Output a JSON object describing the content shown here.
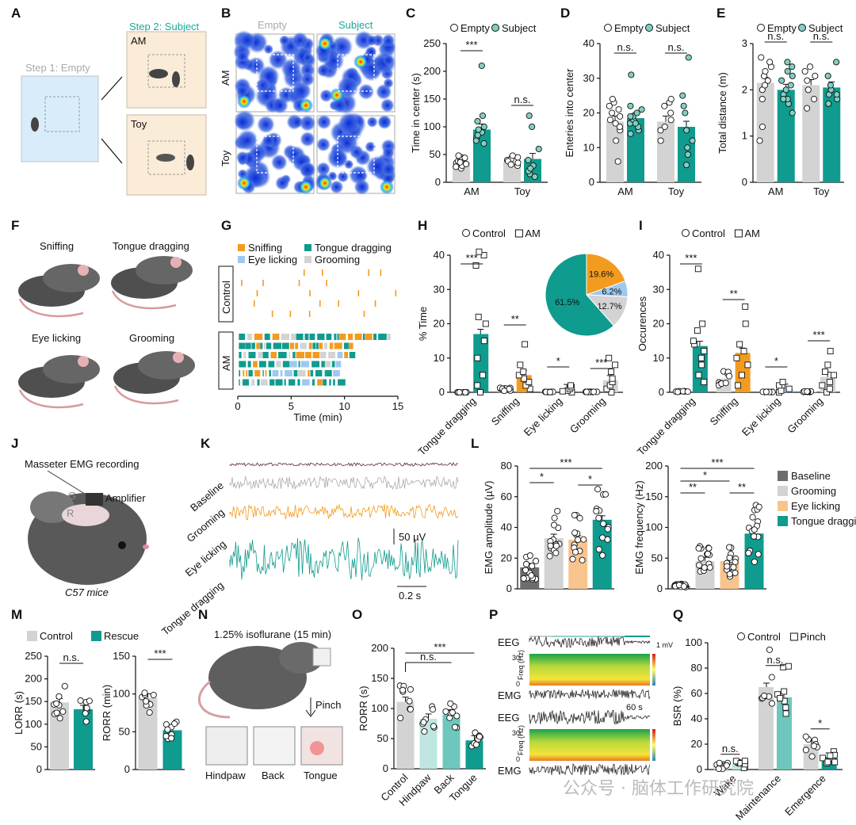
{
  "panel_labels": [
    "A",
    "B",
    "C",
    "D",
    "E",
    "F",
    "G",
    "H",
    "I",
    "J",
    "K",
    "L",
    "M",
    "N",
    "O",
    "P",
    "Q"
  ],
  "colors": {
    "teal": "#0f9b8e",
    "gray": "#d3d3d3",
    "orange": "#f39b1f",
    "light_blue": "#9dc8ef",
    "light_orange": "#f8c48d",
    "baseline_gray": "#6d6d6d",
    "light_teal": "#bfe6e1",
    "mid_teal": "#6dc7bd",
    "subject_label": "#1aa99a"
  },
  "panel_A": {
    "step1": "Step 1: Empty",
    "step2": "Step 2: Subject",
    "am": "AM",
    "toy": "Toy"
  },
  "panel_B": {
    "col1": "Empty",
    "col2": "Subject",
    "row1": "AM",
    "row2": "Toy"
  },
  "panel_J": {
    "title": "Masseter EMG recording",
    "amplifier": "Amplifier",
    "g": "G",
    "r": "R",
    "mice": "C57 mice"
  },
  "panel_K": {
    "traces": [
      "Baseline",
      "Grooming",
      "Eye licking",
      "Tongue dragging"
    ],
    "scale_v": "50 µV",
    "scale_t": "0.2 s"
  },
  "panel_N": {
    "title": "1.25% isoflurane (15 min)",
    "pinch": "Pinch",
    "sites": [
      "Hindpaw",
      "Back",
      "Tongue"
    ]
  },
  "panel_P": {
    "eeg": "EEG",
    "emg": "EMG",
    "freq": "Freq (Hz)",
    "f30": "30",
    "f0": "0",
    "scale_mv": "1 mV",
    "scale_s": "60 s"
  },
  "watermark": "公众号 · 脑体工作研究院",
  "chart_data": [
    {
      "panel": "C",
      "type": "bar",
      "ylabel": "Time in center (s)",
      "ylim": [
        0,
        250
      ],
      "yticks": [
        0,
        50,
        100,
        150,
        200,
        250
      ],
      "categories": [
        "AM",
        "Toy"
      ],
      "legend": [
        "Empty",
        "Subject"
      ],
      "series": [
        {
          "name": "Empty",
          "values": [
            37,
            37
          ]
        },
        {
          "name": "Subject",
          "values": [
            95,
            42
          ]
        }
      ],
      "points": [
        [
          [
            25,
            30,
            35,
            38,
            40,
            45,
            28,
            33,
            42,
            36,
            48,
            44
          ],
          [
            30,
            35,
            40,
            42,
            45,
            38,
            32,
            48
          ]
        ],
        [
          [
            70,
            80,
            90,
            95,
            100,
            110,
            120,
            210,
            85,
            75
          ],
          [
            10,
            15,
            20,
            60,
            100,
            120,
            30,
            25,
            40
          ]
        ]
      ],
      "annotations": [
        "***",
        "n.s."
      ]
    },
    {
      "panel": "D",
      "type": "bar",
      "ylabel": "Enteries into center",
      "ylim": [
        0,
        40
      ],
      "yticks": [
        0,
        10,
        20,
        30,
        40
      ],
      "categories": [
        "AM",
        "Toy"
      ],
      "legend": [
        "Empty",
        "Subject"
      ],
      "series": [
        {
          "name": "Empty",
          "values": [
            17.5,
            17.5
          ]
        },
        {
          "name": "Subject",
          "values": [
            18.5,
            16
          ]
        }
      ],
      "points": [
        [
          [
            6,
            12,
            15,
            17,
            18,
            19,
            20,
            22,
            23,
            24,
            21,
            16
          ],
          [
            12,
            15,
            18,
            20,
            22,
            23,
            24,
            16
          ]
        ],
        [
          [
            14,
            15,
            16,
            17,
            18,
            19,
            20,
            21,
            22,
            31,
            19,
            17
          ],
          [
            5,
            8,
            10,
            15,
            20,
            22,
            25,
            36,
            12
          ]
        ]
      ],
      "annotations": [
        "n.s.",
        "n.s."
      ]
    },
    {
      "panel": "E",
      "type": "bar",
      "ylabel": "Total distance (m)",
      "ylim": [
        0,
        3
      ],
      "yticks": [
        0,
        1,
        2,
        3
      ],
      "categories": [
        "AM",
        "Toy"
      ],
      "legend": [
        "Empty",
        "Subject"
      ],
      "series": [
        {
          "name": "Empty",
          "values": [
            2.15,
            2.1
          ]
        },
        {
          "name": "Subject",
          "values": [
            2.0,
            2.05
          ]
        }
      ],
      "points": [
        [
          [
            0.9,
            1.2,
            1.8,
            2.0,
            2.2,
            2.3,
            2.4,
            2.5,
            2.6,
            2.7,
            2.1
          ],
          [
            1.6,
            1.8,
            2.0,
            2.2,
            2.3,
            2.4,
            2.5
          ]
        ],
        [
          [
            1.5,
            1.7,
            1.8,
            1.9,
            2.0,
            2.1,
            2.2,
            2.3,
            2.4,
            2.5,
            2.6,
            1.8
          ],
          [
            1.7,
            1.8,
            1.9,
            2.0,
            2.1,
            2.3,
            2.6,
            1.9
          ]
        ]
      ],
      "annotations": [
        "n.s.",
        "n.s."
      ]
    },
    {
      "panel": "G",
      "type": "raster",
      "xlabel": "Time (min)",
      "xlim": [
        0,
        15
      ],
      "xticks": [
        0,
        5,
        10,
        15
      ],
      "rows": [
        "Control",
        "AM"
      ],
      "legend": [
        "Sniffing",
        "Tongue dragging",
        "Eye licking",
        "Grooming"
      ]
    },
    {
      "panel": "H",
      "type": "bar",
      "ylabel": "% Time",
      "ylim": [
        0,
        40
      ],
      "yticks": [
        0,
        10,
        20,
        30,
        40
      ],
      "categories": [
        "Tongue dragging",
        "Sniffing",
        "Eye licking",
        "Grooming"
      ],
      "legend": [
        "Control",
        "AM"
      ],
      "series": [
        {
          "name": "Control",
          "values": [
            0,
            1,
            0.1,
            0.1
          ]
        },
        {
          "name": "AM",
          "values": [
            17,
            5,
            0.9,
            3.5
          ]
        }
      ],
      "annotations": [
        "***",
        "**",
        "*",
        "***"
      ],
      "pie": {
        "type": "pie",
        "labels": [
          "61.5%",
          "19.6%",
          "6.2%",
          "12.7%"
        ],
        "values": [
          61.5,
          19.6,
          6.2,
          12.7
        ]
      }
    },
    {
      "panel": "I",
      "type": "bar",
      "ylabel": "Occurences",
      "ylim": [
        0,
        40
      ],
      "yticks": [
        0,
        10,
        20,
        30,
        40
      ],
      "categories": [
        "Tongue dragging",
        "Sniffing",
        "Eye licking",
        "Grooming"
      ],
      "legend": [
        "Control",
        "AM"
      ],
      "series": [
        {
          "name": "Control",
          "values": [
            0.2,
            4,
            0.1,
            0.2
          ]
        },
        {
          "name": "AM",
          "values": [
            13.5,
            11.5,
            1,
            4.5
          ]
        }
      ],
      "annotations": [
        "***",
        "**",
        "*",
        "***"
      ]
    },
    {
      "panel": "L1",
      "type": "bar",
      "ylabel": "EMG amplitude (µV)",
      "ylim": [
        0,
        80
      ],
      "yticks": [
        0,
        20,
        40,
        60,
        80
      ],
      "categories": [
        "Baseline",
        "Grooming",
        "Eye licking",
        "Tongue dragging"
      ],
      "values": [
        14,
        33,
        32,
        45
      ],
      "annotations": [
        "*",
        "*",
        "***"
      ]
    },
    {
      "panel": "L2",
      "type": "bar",
      "ylabel": "EMG frequency (Hz)",
      "ylim": [
        0,
        200
      ],
      "yticks": [
        0,
        50,
        100,
        150,
        200
      ],
      "categories": [
        "Baseline",
        "Grooming",
        "Eye licking",
        "Tongue dragging"
      ],
      "values": [
        5,
        45,
        45,
        90
      ],
      "annotations": [
        "**",
        "*",
        "**",
        "***"
      ],
      "legend": [
        "Baseline",
        "Grooming",
        "Eye licking",
        "Tongue dragging"
      ]
    },
    {
      "panel": "M1",
      "type": "bar",
      "ylabel": "LORR (s)",
      "ylim": [
        0,
        250
      ],
      "yticks": [
        0,
        50,
        100,
        150,
        200,
        250
      ],
      "categories": [
        "Control",
        "Rescue"
      ],
      "values": [
        148,
        133
      ],
      "legend": [
        "Control",
        "Rescue"
      ],
      "annotations": [
        "n.s."
      ]
    },
    {
      "panel": "M2",
      "type": "bar",
      "ylabel": "RORR (min)",
      "ylim": [
        0,
        150
      ],
      "yticks": [
        0,
        50,
        100,
        150
      ],
      "categories": [
        "Control",
        "Rescue"
      ],
      "values": [
        95,
        52
      ],
      "annotations": [
        "***"
      ]
    },
    {
      "panel": "O",
      "type": "bar",
      "ylabel": "RORR (s)",
      "ylim": [
        0,
        200
      ],
      "yticks": [
        0,
        50,
        100,
        150,
        200
      ],
      "categories": [
        "Control",
        "Hindpaw",
        "Back",
        "Tongue"
      ],
      "values": [
        111,
        83,
        90,
        47
      ],
      "annotations": [
        "***",
        "n.s."
      ]
    },
    {
      "panel": "Q",
      "type": "bar",
      "ylabel": "BSR (%)",
      "ylim": [
        0,
        100
      ],
      "yticks": [
        0,
        20,
        40,
        60,
        80,
        100
      ],
      "categories": [
        "Wake",
        "Maintenance",
        "Emergence"
      ],
      "legend": [
        "Control",
        "Pinch"
      ],
      "series": [
        {
          "name": "Control",
          "values": [
            3,
            65,
            20
          ]
        },
        {
          "name": "Pinch",
          "values": [
            4,
            57,
            10
          ]
        }
      ],
      "annotations": [
        "n.s.",
        "n.s.",
        "*"
      ]
    }
  ]
}
